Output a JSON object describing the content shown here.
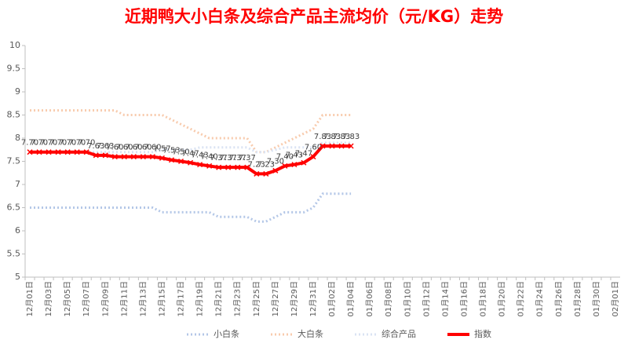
{
  "chart_data": {
    "type": "line",
    "title": "近期鸭大小白条及综合产品主流均价（元/KG）走势",
    "categories": [
      "12月01日",
      null,
      "12月03日",
      null,
      "12月05日",
      null,
      "12月07日",
      null,
      "12月09日",
      null,
      "12月11日",
      null,
      "12月13日",
      null,
      "12月15日",
      null,
      "12月17日",
      null,
      "12月19日",
      null,
      "12月21日",
      null,
      "12月23日",
      null,
      "12月25日",
      null,
      "12月27日",
      null,
      "12月29日",
      null,
      "12月31日",
      null,
      "01月02日",
      null,
      "01月04日",
      null,
      "01月06日",
      null,
      "01月08日",
      null,
      "01月10日",
      null,
      "01月12日",
      null,
      "01月14日",
      null,
      "01月16日",
      null,
      "01月18日",
      null,
      "01月20日",
      null,
      "01月22日",
      null,
      "01月24日",
      null,
      "01月26日",
      null,
      "01月28日",
      null,
      "01月30日",
      null,
      "02月01日"
    ],
    "series": [
      {
        "name": "小白条",
        "color": "#b4c7e7",
        "dash": true,
        "values": [
          6.5,
          6.5,
          6.5,
          6.5,
          6.5,
          6.5,
          6.5,
          6.5,
          6.5,
          6.5,
          6.5,
          6.5,
          6.5,
          6.5,
          6.4,
          6.4,
          6.4,
          6.4,
          6.4,
          6.4,
          6.3,
          6.3,
          6.3,
          6.3,
          6.2,
          6.2,
          6.3,
          6.4,
          6.4,
          6.4,
          6.5,
          6.8,
          6.8,
          6.8,
          6.8,
          null,
          null,
          null,
          null,
          null,
          null,
          null,
          null,
          null,
          null,
          null,
          null,
          null,
          null,
          null,
          null,
          null,
          null,
          null,
          null,
          null,
          null,
          null,
          null,
          null,
          null,
          null,
          null
        ]
      },
      {
        "name": "大白条",
        "color": "#f8cbad",
        "dash": true,
        "values": [
          8.6,
          8.6,
          8.6,
          8.6,
          8.6,
          8.6,
          8.6,
          8.6,
          8.6,
          8.6,
          8.5,
          8.5,
          8.5,
          8.5,
          8.5,
          8.4,
          8.3,
          8.2,
          8.1,
          8.0,
          8.0,
          8.0,
          8.0,
          8.0,
          7.7,
          7.7,
          7.8,
          7.9,
          8.0,
          8.1,
          8.2,
          8.5,
          8.5,
          8.5,
          8.5,
          null,
          null,
          null,
          null,
          null,
          null,
          null,
          null,
          null,
          null,
          null,
          null,
          null,
          null,
          null,
          null,
          null,
          null,
          null,
          null,
          null,
          null,
          null,
          null,
          null,
          null,
          null,
          null
        ]
      },
      {
        "name": "综合产品",
        "color": "#dae3f3",
        "dash": true,
        "values": [
          7.7,
          7.7,
          7.7,
          7.7,
          7.7,
          7.7,
          7.7,
          7.7,
          7.7,
          7.7,
          7.7,
          7.7,
          7.7,
          7.7,
          7.75,
          7.75,
          7.75,
          7.75,
          7.8,
          7.8,
          7.8,
          7.8,
          7.8,
          7.8,
          7.7,
          7.7,
          7.75,
          7.8,
          7.8,
          7.8,
          7.8,
          7.9,
          7.9,
          7.9,
          7.9,
          null,
          null,
          null,
          null,
          null,
          null,
          null,
          null,
          null,
          null,
          null,
          null,
          null,
          null,
          null,
          null,
          null,
          null,
          null,
          null,
          null,
          null,
          null,
          null,
          null,
          null,
          null,
          null
        ]
      },
      {
        "name": "指数",
        "color": "#ff0000",
        "dash": false,
        "values": [
          7.7,
          7.7,
          7.7,
          7.7,
          7.7,
          7.7,
          7.7,
          7.63,
          7.63,
          7.6,
          7.6,
          7.6,
          7.6,
          7.6,
          7.57,
          7.53,
          7.5,
          7.47,
          7.43,
          7.4,
          7.37,
          7.37,
          7.37,
          7.37,
          7.23,
          7.23,
          7.3,
          7.4,
          7.43,
          7.47,
          7.6,
          7.83,
          7.83,
          7.83,
          7.83,
          null,
          null,
          null,
          null,
          null,
          null,
          null,
          null,
          null,
          null,
          null,
          null,
          null,
          null,
          null,
          null,
          null,
          null,
          null,
          null,
          null,
          null,
          null,
          null,
          null,
          null,
          null,
          null
        ],
        "value_labels": [
          "7.70",
          "7.70",
          "7.70",
          "7.70",
          "7.70",
          "7.70",
          "7.70",
          "7.63",
          "7.63",
          "7.60",
          "7.60",
          "7.60",
          "7.60",
          "7.60",
          "7.57",
          "7.53",
          "7.50",
          "7.47",
          "7.43",
          "7.40",
          "7.37",
          "7.37",
          "7.37",
          "7.37",
          "7.23",
          "7.23",
          "7.30",
          "7.40",
          "7.43",
          "7.47",
          "7.60",
          "7.83",
          "7.83",
          "7.83",
          "7.83",
          null,
          null,
          null,
          null,
          null,
          null,
          null,
          null,
          null,
          null,
          null,
          null,
          null,
          null,
          null,
          null,
          null,
          null,
          null,
          null,
          null,
          null,
          null,
          null,
          null,
          null,
          null,
          null
        ]
      }
    ],
    "ylim": [
      5,
      10
    ],
    "yticks": [
      5,
      5.5,
      6,
      6.5,
      7,
      7.5,
      8,
      8.5,
      9,
      9.5,
      10
    ],
    "grid": false,
    "legend": "bottom"
  }
}
